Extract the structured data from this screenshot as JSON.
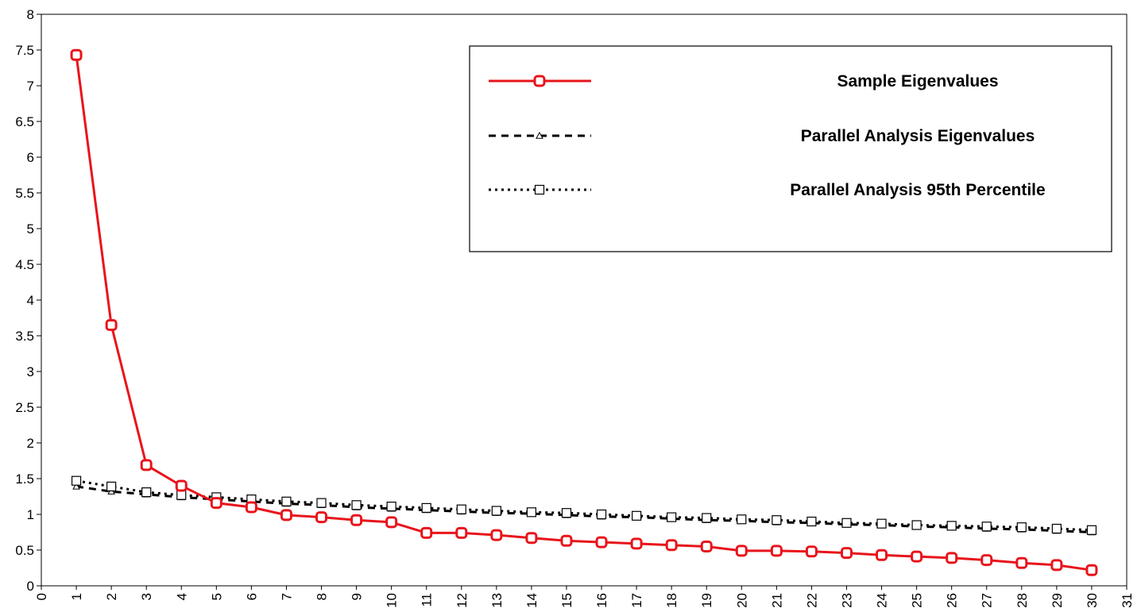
{
  "chart_data": {
    "type": "line",
    "x": [
      1,
      2,
      3,
      4,
      5,
      6,
      7,
      8,
      9,
      10,
      11,
      12,
      13,
      14,
      15,
      16,
      17,
      18,
      19,
      20,
      21,
      22,
      23,
      24,
      25,
      26,
      27,
      28,
      29,
      30
    ],
    "xlim": [
      0,
      31
    ],
    "ylim": [
      0,
      8
    ],
    "x_ticks": [
      "0",
      "1",
      "2",
      "3",
      "4",
      "5",
      "6",
      "7",
      "8",
      "9",
      "10",
      "11",
      "12",
      "13",
      "14",
      "15",
      "16",
      "17",
      "18",
      "19",
      "20",
      "21",
      "22",
      "23",
      "24",
      "25",
      "26",
      "27",
      "28",
      "29",
      "30",
      "31"
    ],
    "y_ticks": [
      "0",
      "0.5",
      "1",
      "1.5",
      "2",
      "2.5",
      "3",
      "3.5",
      "4",
      "4.5",
      "5",
      "5.5",
      "6",
      "6.5",
      "7",
      "7.5",
      "8"
    ],
    "grid": false,
    "legend_position": "top-right",
    "series": [
      {
        "name": "Sample Eigenvalues",
        "color": "#e8141b",
        "line": "solid",
        "marker": "circle",
        "values": [
          7.43,
          3.65,
          1.69,
          1.4,
          1.16,
          1.1,
          0.99,
          0.96,
          0.92,
          0.89,
          0.74,
          0.74,
          0.71,
          0.67,
          0.63,
          0.61,
          0.59,
          0.57,
          0.55,
          0.49,
          0.49,
          0.48,
          0.46,
          0.43,
          0.41,
          0.39,
          0.36,
          0.32,
          0.29,
          0.22
        ]
      },
      {
        "name": "Parallel Analysis Eigenvalues",
        "color": "#000000",
        "line": "dashed",
        "marker": "triangle",
        "values": [
          1.39,
          1.32,
          1.28,
          1.24,
          1.21,
          1.18,
          1.15,
          1.13,
          1.1,
          1.08,
          1.06,
          1.04,
          1.02,
          1.01,
          0.99,
          0.97,
          0.96,
          0.94,
          0.92,
          0.91,
          0.89,
          0.88,
          0.86,
          0.85,
          0.83,
          0.82,
          0.8,
          0.79,
          0.77,
          0.75
        ]
      },
      {
        "name": "Parallel Analysis 95th Percentile",
        "color": "#000000",
        "line": "dotted",
        "marker": "square",
        "values": [
          1.47,
          1.39,
          1.31,
          1.27,
          1.24,
          1.21,
          1.18,
          1.16,
          1.13,
          1.11,
          1.09,
          1.07,
          1.05,
          1.03,
          1.02,
          1.0,
          0.98,
          0.96,
          0.95,
          0.93,
          0.92,
          0.9,
          0.88,
          0.87,
          0.85,
          0.84,
          0.83,
          0.82,
          0.8,
          0.78
        ]
      }
    ]
  }
}
